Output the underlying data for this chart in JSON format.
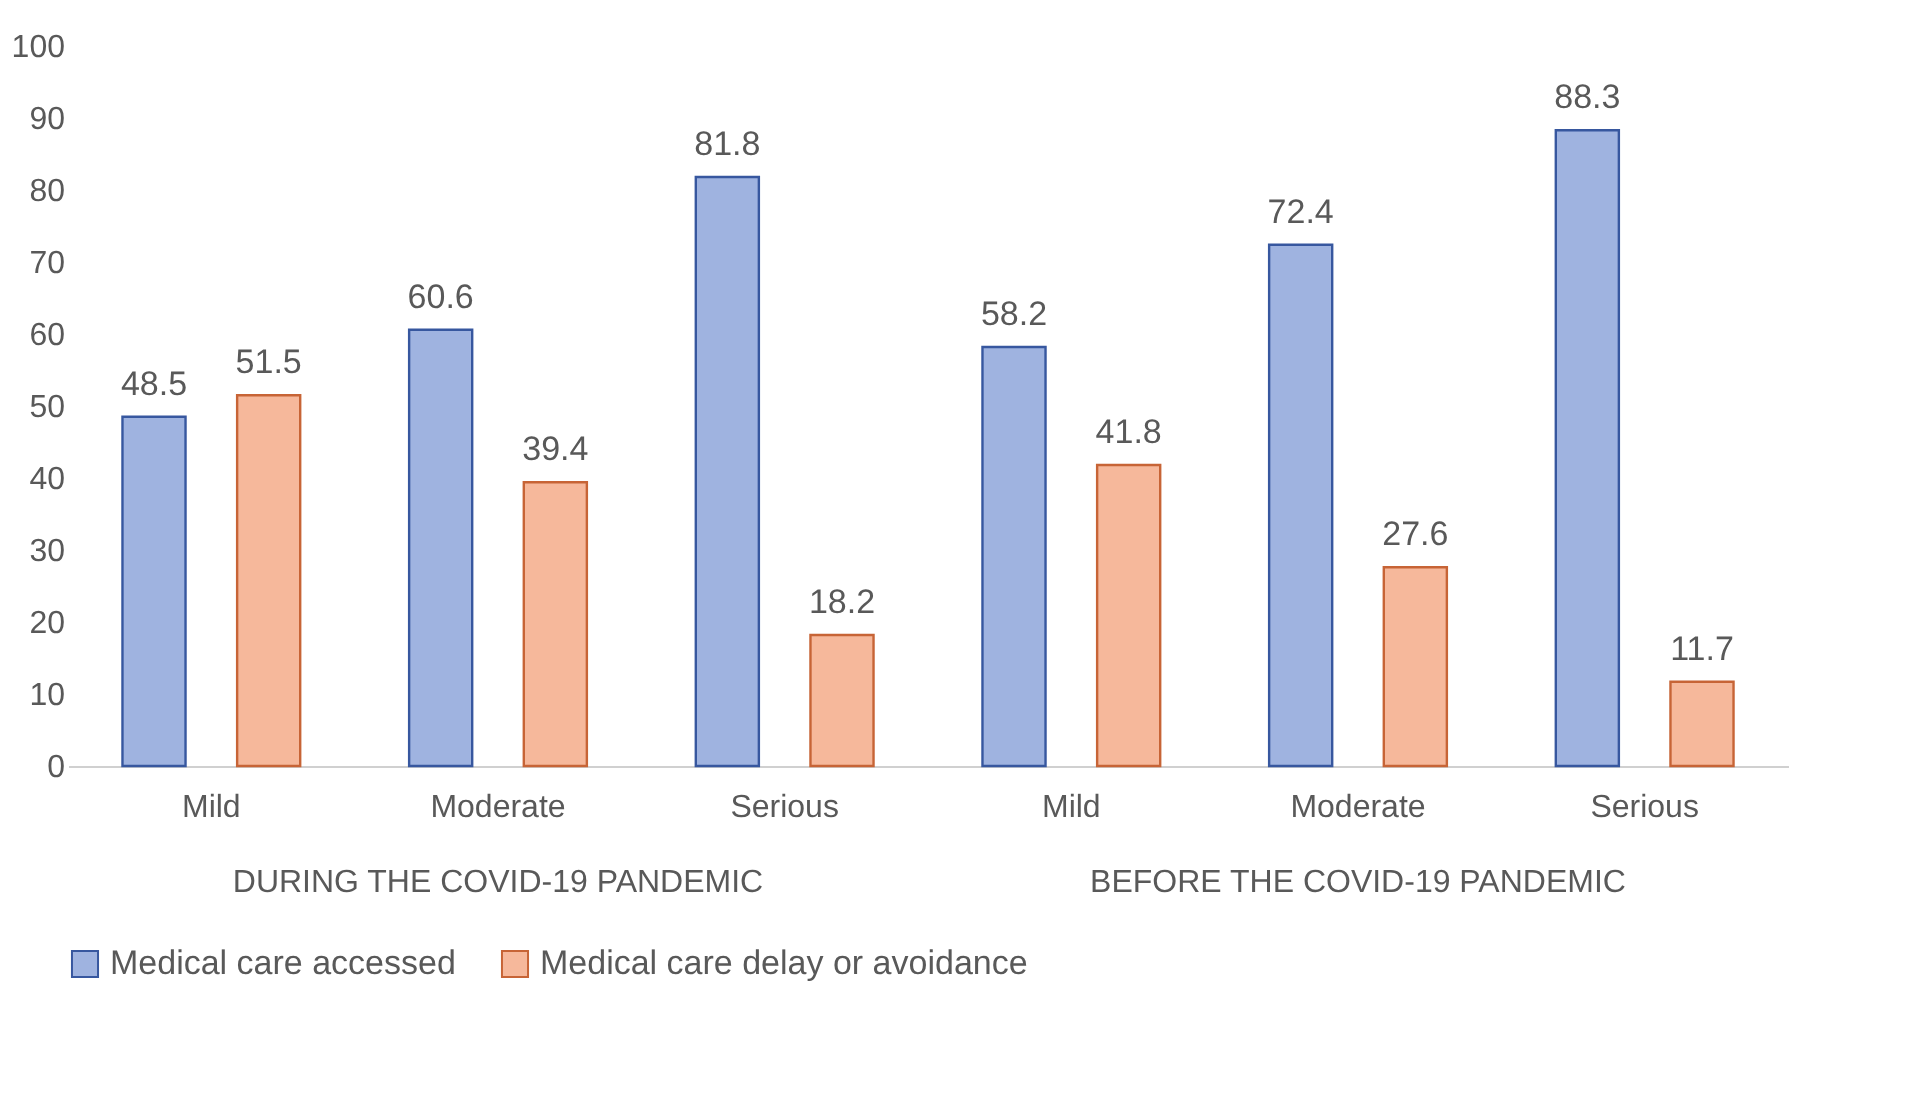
{
  "chart_data": {
    "type": "bar",
    "categories": [
      "Mild",
      "Moderate",
      "Serious",
      "Mild",
      "Moderate",
      "Serious"
    ],
    "series": [
      {
        "name": "Medical care accessed",
        "color": "#9fb3e0",
        "values": [
          48.5,
          60.6,
          81.8,
          58.2,
          72.4,
          88.3
        ]
      },
      {
        "name": "Medical care delay or avoidance",
        "color": "#f6b89b",
        "values": [
          51.5,
          39.4,
          18.2,
          41.8,
          27.6,
          11.7
        ]
      }
    ],
    "annotations": [
      "DURING THE COVID-19 PANDEMIC",
      "BEFORE THE COVID-19 PANDEMIC"
    ],
    "ylim": [
      0,
      100
    ],
    "yticks": [
      0,
      10,
      20,
      30,
      40,
      50,
      60,
      70,
      80,
      90,
      100
    ],
    "data_labels": true,
    "legend": "bottom",
    "grid": false
  }
}
